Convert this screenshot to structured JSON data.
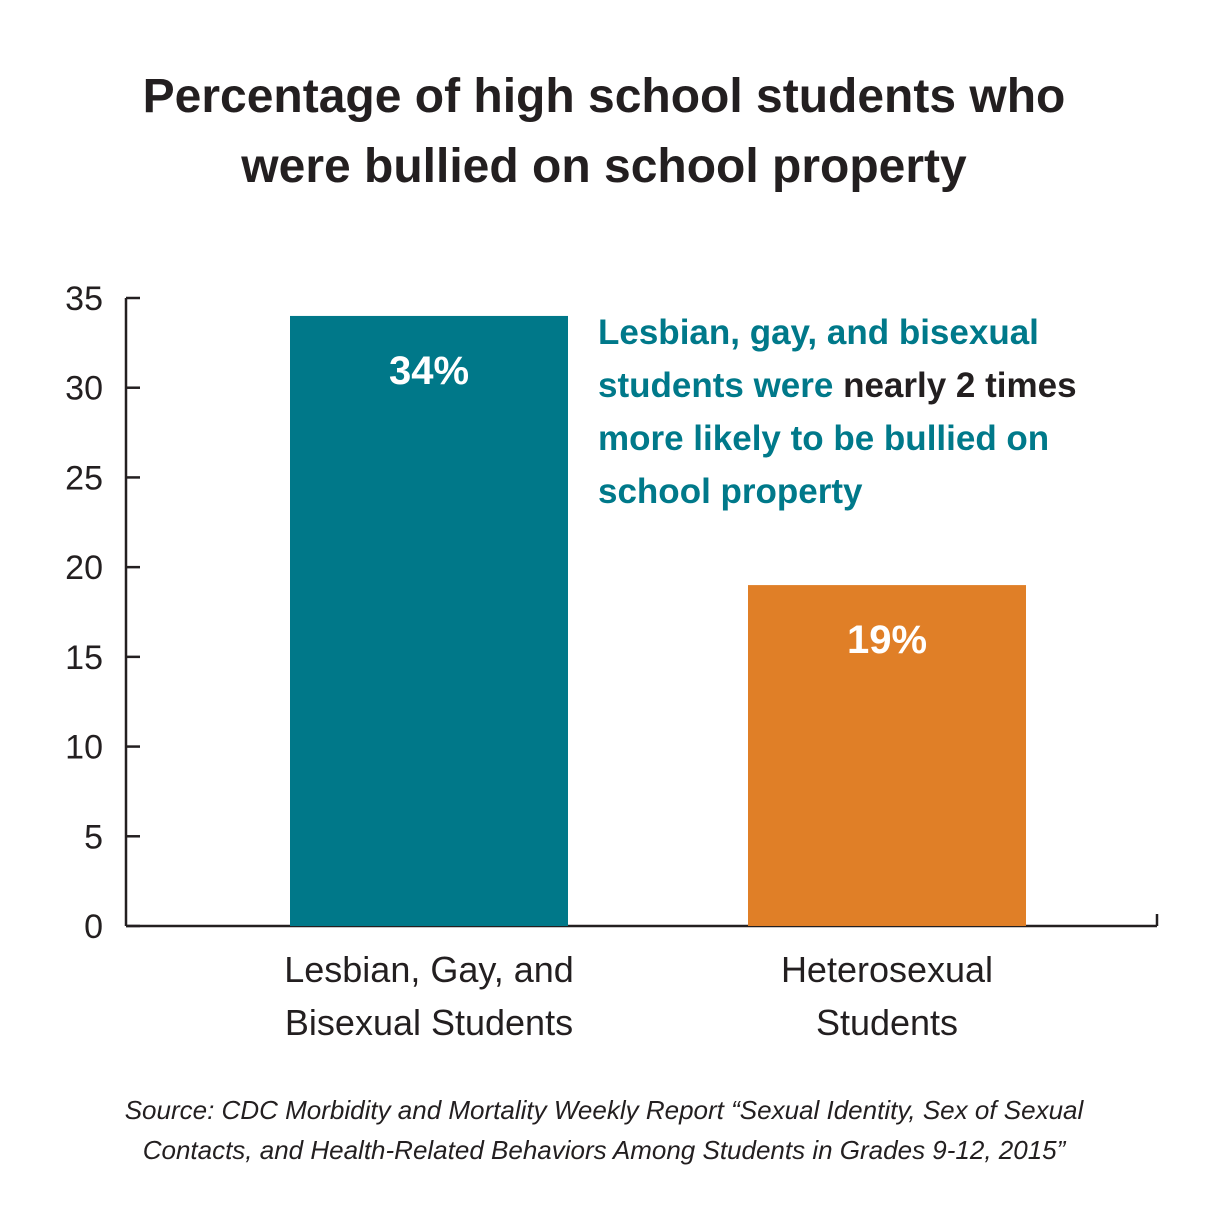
{
  "chart_data": {
    "type": "bar",
    "title_lines": [
      "Percentage of high school students who",
      "were bullied on school property"
    ],
    "categories": [
      [
        "Lesbian, Gay, and",
        "Bisexual Students"
      ],
      [
        "Heterosexual",
        "Students"
      ]
    ],
    "values": [
      34,
      19
    ],
    "data_labels": [
      "34%",
      "19%"
    ],
    "colors": [
      "#007889",
      "#e07f27"
    ],
    "y_ticks": [
      0,
      5,
      10,
      15,
      20,
      25,
      30,
      35
    ],
    "ylim": [
      0,
      35
    ],
    "grid": false,
    "xlabel": "",
    "ylabel": ""
  },
  "callout": {
    "part1": "Lesbian, gay, and bisexual students were ",
    "part2": "nearly 2 times",
    "part3": " more likely to be bullied on school property"
  },
  "source_lines": [
    "Source: CDC Morbidity and Mortality Weekly Report “Sexual Identity, Sex of Sexual",
    "Contacts, and Health-Related Behaviors Among Students in Grades 9-12, 2015”"
  ]
}
